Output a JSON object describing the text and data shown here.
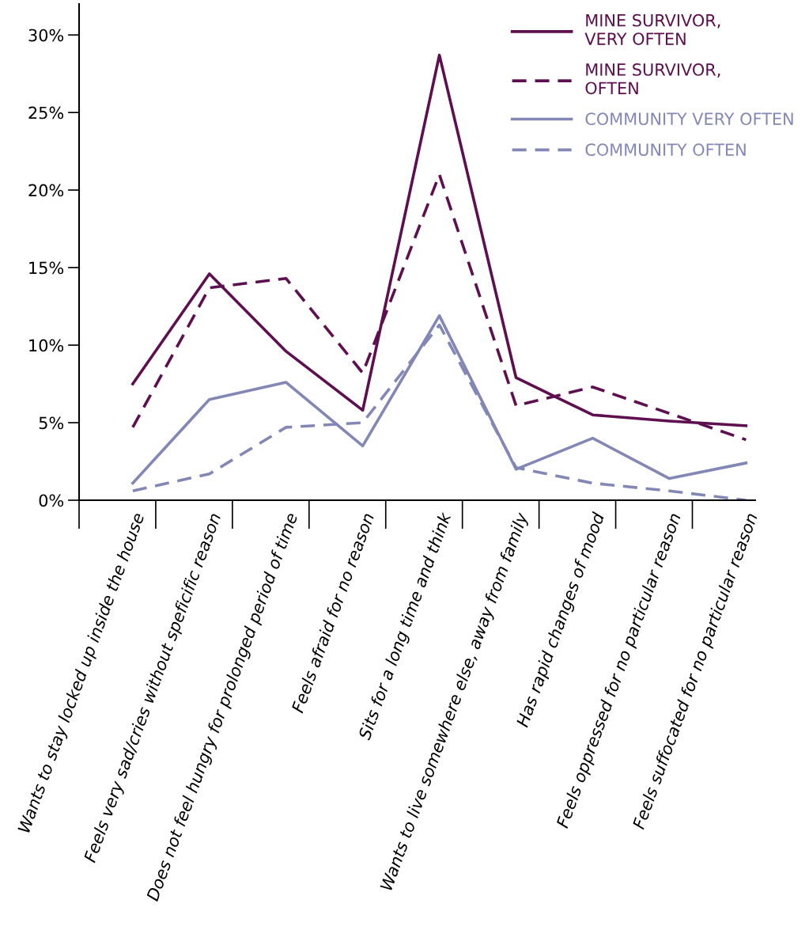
{
  "chart_data": {
    "type": "line",
    "categories": [
      "Wants to stay locked up inside the house",
      "Feels very sad/cries without speficific reason",
      "Does not feel hungry for prolonged period of time",
      "Feels afraid for no reason",
      "Sits for a long time and think",
      "Wants to live somewhere else, away from family",
      "Has rapid changes of mood",
      "Feels oppressed for no particular reason",
      "Feels suffocated for no particular reason"
    ],
    "series": [
      {
        "name": "MINE SURVIVOR,\nVERY OFTEN",
        "color": "#5e0f4f",
        "line_style": "solid",
        "values": [
          7.5,
          14.6,
          9.6,
          5.8,
          28.7,
          7.9,
          5.5,
          5.1,
          4.8
        ]
      },
      {
        "name": "MINE SURVIVOR,\nOFTEN",
        "color": "#5e0f4f",
        "line_style": "dashed",
        "values": [
          4.7,
          13.7,
          14.3,
          8.2,
          21.0,
          6.1,
          7.3,
          5.6,
          3.9
        ]
      },
      {
        "name": "COMMUNITY VERY OFTEN",
        "color": "#8387b5",
        "line_style": "solid",
        "values": [
          1.1,
          6.5,
          7.6,
          3.5,
          11.9,
          2.0,
          4.0,
          1.4,
          2.4
        ]
      },
      {
        "name": "COMMUNITY OFTEN",
        "color": "#8387b5",
        "line_style": "dashed",
        "values": [
          0.6,
          1.7,
          4.7,
          5.0,
          11.3,
          2.1,
          1.1,
          0.6,
          0.0
        ]
      }
    ],
    "ylim": [
      0,
      32
    ],
    "yticks": [
      {
        "value": 0,
        "label": "0%"
      },
      {
        "value": 5,
        "label": "5%"
      },
      {
        "value": 10,
        "label": "10%"
      },
      {
        "value": 15,
        "label": "15%"
      },
      {
        "value": 20,
        "label": "20%"
      },
      {
        "value": 25,
        "label": "25%"
      },
      {
        "value": 30,
        "label": "30%"
      }
    ],
    "grid": false,
    "legend": "top right",
    "marker": "none"
  }
}
